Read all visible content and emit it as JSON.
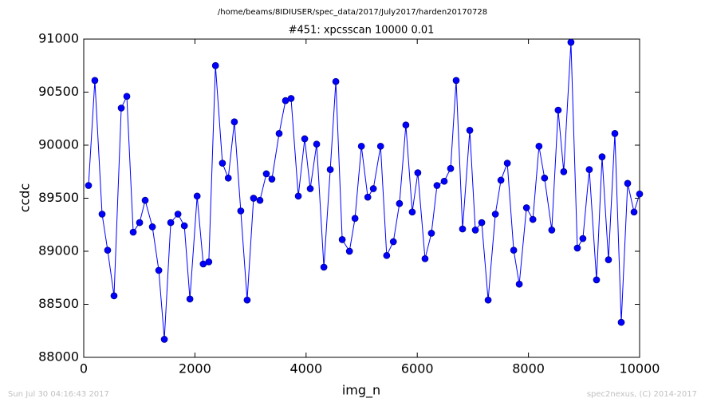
{
  "chart_data": {
    "type": "line",
    "title": "/home/beams/8IDIUSER/spec_data/2017/July2017/harden20170728",
    "subtitle": "#451: xpcsscan 10000 0.01",
    "x_label": "img_n",
    "y_label": "ccdc",
    "footer_left": "Sun Jul 30 04:16:43 2017",
    "footer_right": "spec2nexus, (C) 2014-2017",
    "x": [
      86,
      200,
      330,
      430,
      545,
      675,
      775,
      890,
      1005,
      1105,
      1235,
      1350,
      1450,
      1565,
      1695,
      1810,
      1910,
      2040,
      2150,
      2250,
      2370,
      2495,
      2600,
      2710,
      2825,
      2940,
      3055,
      3170,
      3285,
      3385,
      3515,
      3630,
      3730,
      3860,
      3975,
      4075,
      4190,
      4320,
      4435,
      4535,
      4650,
      4780,
      4880,
      4995,
      5110,
      5210,
      5340,
      5450,
      5570,
      5680,
      5795,
      5910,
      6010,
      6140,
      6255,
      6355,
      6485,
      6600,
      6700,
      6815,
      6945,
      7045,
      7160,
      7275,
      7405,
      7505,
      7620,
      7735,
      7835,
      7965,
      8080,
      8190,
      8290,
      8420,
      8535,
      8635,
      8765,
      8880,
      8980,
      9095,
      9225,
      9325,
      9440,
      9555,
      9670,
      9785,
      9900,
      10000
    ],
    "series": [
      {
        "name": "ccdc",
        "color": "#0000ff",
        "marker_edge": "#000080",
        "values": [
          89620,
          90610,
          89350,
          89010,
          88580,
          90350,
          90460,
          89180,
          89270,
          89480,
          89230,
          88820,
          88170,
          89270,
          89350,
          89240,
          88550,
          89520,
          88880,
          88900,
          90750,
          89830,
          89690,
          90220,
          89380,
          88540,
          89500,
          89480,
          89730,
          89680,
          90110,
          90420,
          90440,
          89520,
          90060,
          89590,
          90010,
          88850,
          89770,
          90600,
          89110,
          89000,
          89310,
          89990,
          89510,
          89590,
          89990,
          88960,
          89090,
          89450,
          90190,
          89370,
          89740,
          88930,
          89170,
          89620,
          89660,
          89780,
          90610,
          89210,
          90140,
          89200,
          89270,
          88540,
          89350,
          89670,
          89830,
          89010,
          88690,
          89410,
          89300,
          89990,
          89690,
          89200,
          90330,
          89750,
          90970,
          89030,
          89120,
          89770,
          88730,
          89890,
          88920,
          90110,
          88330,
          89640,
          89370,
          89540
        ]
      }
    ],
    "xlim": [
      0,
      10000
    ],
    "xticks": [
      0,
      2000,
      4000,
      6000,
      8000,
      10000
    ],
    "ylim": [
      88000,
      91000
    ],
    "yticks": [
      88000,
      88500,
      89000,
      89500,
      90000,
      90500,
      91000
    ]
  }
}
